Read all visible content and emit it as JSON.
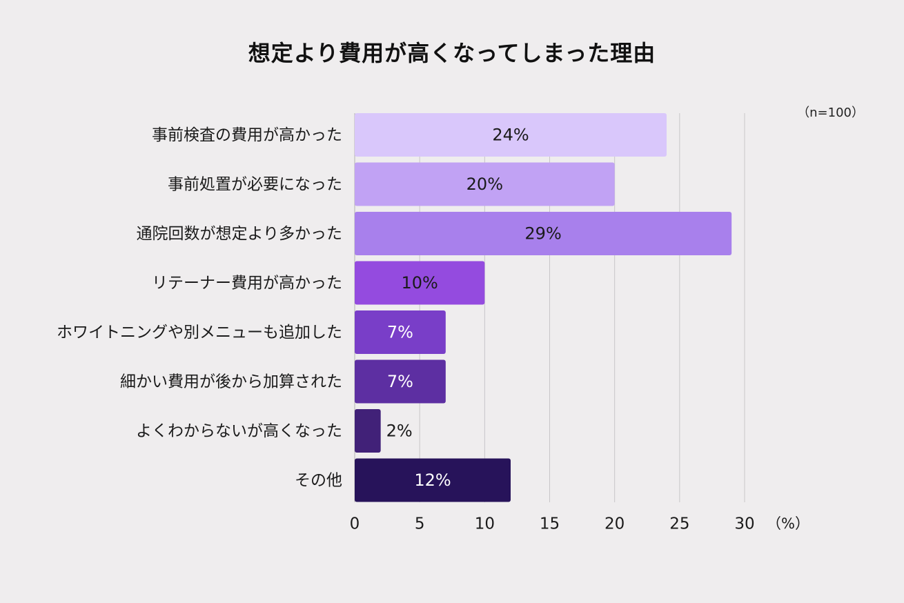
{
  "title": "想定より費用が高くなってしまった理由",
  "sample_note": "（n=100）",
  "colors": {
    "background": "#efedee",
    "grid": "#c8c6c8",
    "axis": "#b3b1b3"
  },
  "chart_data": {
    "type": "bar",
    "orientation": "horizontal",
    "title": "想定より費用が高くなってしまった理由",
    "categories": [
      "事前検査の費用が高かった",
      "事前処置が必要になった",
      "通院回数が想定より多かった",
      "リテーナー費用が高かった",
      "ホワイトニングや別メニューも追加した",
      "細かい費用が後から加算された",
      "よくわからないが高くなった",
      "その他"
    ],
    "values": [
      24,
      20,
      29,
      10,
      7,
      7,
      2,
      12
    ],
    "data_labels": [
      "24%",
      "20%",
      "29%",
      "10%",
      "7%",
      "7%",
      "2%",
      "12%"
    ],
    "bar_colors": [
      "#d9c7fb",
      "#c1a2f4",
      "#a880ec",
      "#944bdf",
      "#793ec8",
      "#5d2fa2",
      "#412178",
      "#27135a"
    ],
    "label_colors": [
      "#1a1a1a",
      "#1a1a1a",
      "#1a1a1a",
      "#1a1a1a",
      "#ffffff",
      "#ffffff",
      "#1a1a1a",
      "#ffffff"
    ],
    "x_ticks": [
      0,
      5,
      10,
      15,
      20,
      25,
      30
    ],
    "x_tick_labels": [
      "0",
      "5",
      "10",
      "15",
      "20",
      "25",
      "30"
    ],
    "xlim": [
      0,
      30
    ],
    "x_unit": "（%）",
    "grid": true
  }
}
